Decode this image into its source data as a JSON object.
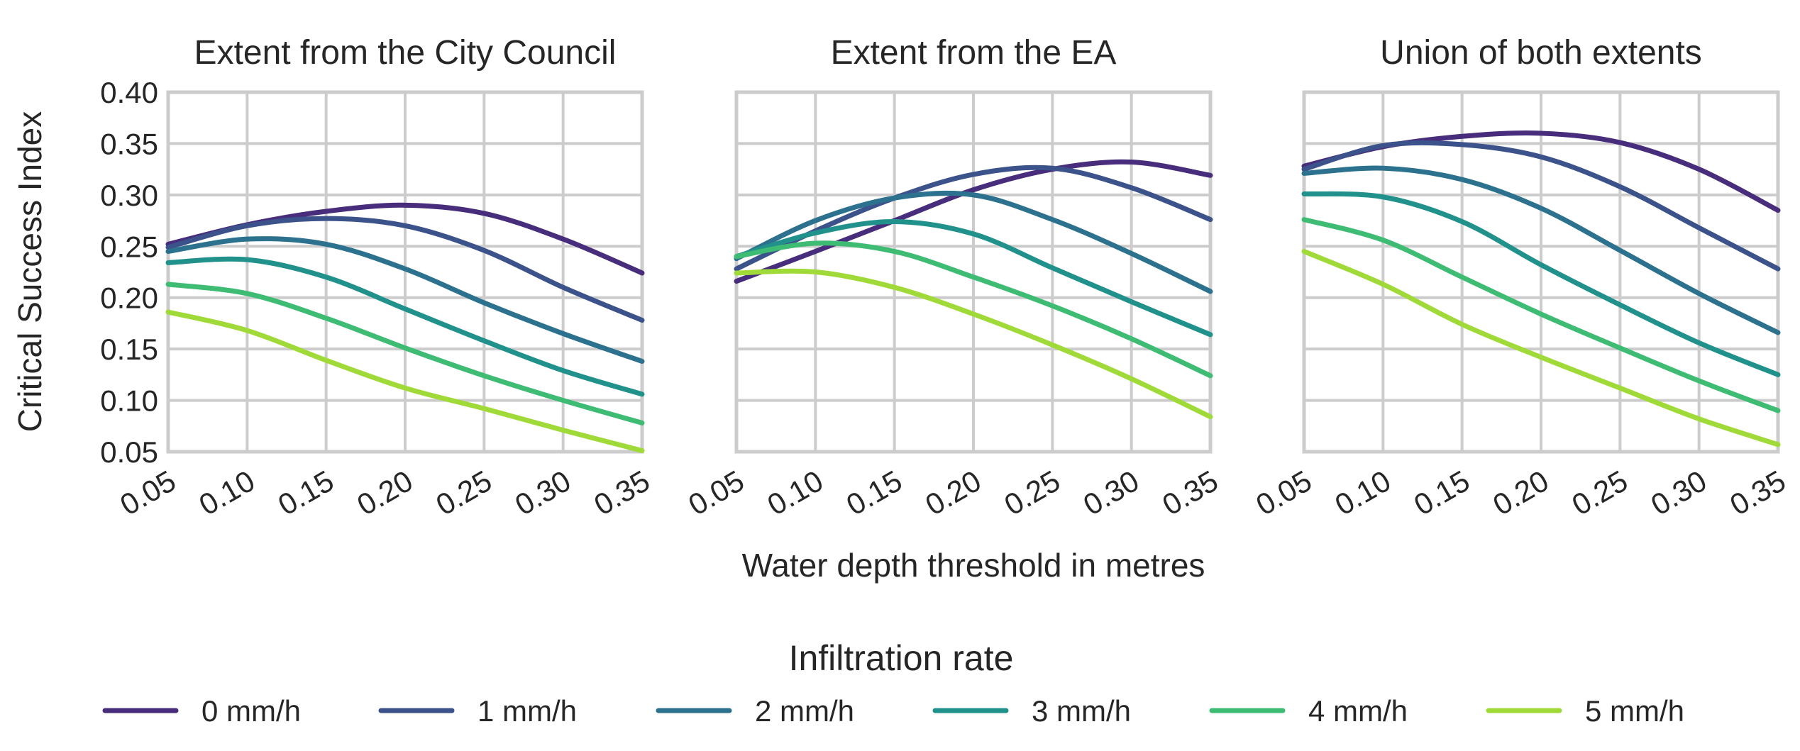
{
  "chart_data": {
    "type": "line",
    "xlabel": "Water depth threshold in metres",
    "ylabel": "Critical Success Index",
    "xlim": [
      0.05,
      0.35
    ],
    "ylim": [
      0.05,
      0.4
    ],
    "x": [
      0.05,
      0.1,
      0.15,
      0.2,
      0.25,
      0.3,
      0.35
    ],
    "x_tick_labels": [
      "0.05",
      "0.10",
      "0.15",
      "0.20",
      "0.25",
      "0.30",
      "0.35"
    ],
    "y_ticks": [
      0.05,
      0.1,
      0.15,
      0.2,
      0.25,
      0.3,
      0.35,
      0.4
    ],
    "y_tick_labels": [
      "0.05",
      "0.10",
      "0.15",
      "0.20",
      "0.25",
      "0.30",
      "0.35",
      "0.40"
    ],
    "grid": true,
    "legend": {
      "title": "Infiltration rate",
      "position": "bottom-center",
      "entries": [
        "0 mm/h",
        "1 mm/h",
        "2 mm/h",
        "3 mm/h",
        "4 mm/h",
        "5 mm/h"
      ],
      "colors": [
        "#472d7b",
        "#3b528b",
        "#2c728e",
        "#21918c",
        "#3fbc73",
        "#a0da39"
      ]
    },
    "panels": [
      {
        "title": "Extent from the City Council",
        "series": [
          {
            "name": "0 mm/h",
            "values": [
              0.252,
              0.271,
              0.284,
              0.29,
              0.282,
              0.257,
              0.224
            ]
          },
          {
            "name": "1 mm/h",
            "values": [
              0.249,
              0.27,
              0.277,
              0.27,
              0.246,
              0.21,
              0.178
            ]
          },
          {
            "name": "2 mm/h",
            "values": [
              0.245,
              0.257,
              0.252,
              0.228,
              0.195,
              0.165,
              0.138
            ]
          },
          {
            "name": "3 mm/h",
            "values": [
              0.234,
              0.237,
              0.22,
              0.189,
              0.158,
              0.129,
              0.106
            ]
          },
          {
            "name": "4 mm/h",
            "values": [
              0.213,
              0.204,
              0.18,
              0.151,
              0.124,
              0.1,
              0.078
            ]
          },
          {
            "name": "5 mm/h",
            "values": [
              0.186,
              0.168,
              0.139,
              0.112,
              0.092,
              0.071,
              0.051
            ]
          }
        ]
      },
      {
        "title": "Extent from the EA",
        "series": [
          {
            "name": "0 mm/h",
            "values": [
              0.216,
              0.245,
              0.275,
              0.305,
              0.325,
              0.332,
              0.319
            ]
          },
          {
            "name": "1 mm/h",
            "values": [
              0.228,
              0.265,
              0.297,
              0.32,
              0.326,
              0.307,
              0.276
            ]
          },
          {
            "name": "2 mm/h",
            "values": [
              0.238,
              0.275,
              0.297,
              0.3,
              0.276,
              0.243,
              0.206
            ]
          },
          {
            "name": "3 mm/h",
            "values": [
              0.24,
              0.263,
              0.274,
              0.262,
              0.229,
              0.196,
              0.164
            ]
          },
          {
            "name": "4 mm/h",
            "values": [
              0.24,
              0.253,
              0.245,
              0.22,
              0.192,
              0.16,
              0.124
            ]
          },
          {
            "name": "5 mm/h",
            "values": [
              0.224,
              0.225,
              0.21,
              0.184,
              0.154,
              0.121,
              0.084
            ]
          }
        ]
      },
      {
        "title": "Union of both extents",
        "series": [
          {
            "name": "0 mm/h",
            "values": [
              0.328,
              0.347,
              0.357,
              0.36,
              0.351,
              0.325,
              0.285
            ]
          },
          {
            "name": "1 mm/h",
            "values": [
              0.325,
              0.348,
              0.349,
              0.337,
              0.308,
              0.268,
              0.228
            ]
          },
          {
            "name": "2 mm/h",
            "values": [
              0.321,
              0.326,
              0.315,
              0.287,
              0.246,
              0.204,
              0.166
            ]
          },
          {
            "name": "3 mm/h",
            "values": [
              0.301,
              0.298,
              0.274,
              0.232,
              0.193,
              0.156,
              0.125
            ]
          },
          {
            "name": "4 mm/h",
            "values": [
              0.276,
              0.256,
              0.22,
              0.184,
              0.151,
              0.119,
              0.09
            ]
          },
          {
            "name": "5 mm/h",
            "values": [
              0.245,
              0.213,
              0.174,
              0.142,
              0.112,
              0.082,
              0.057
            ]
          }
        ]
      }
    ]
  }
}
